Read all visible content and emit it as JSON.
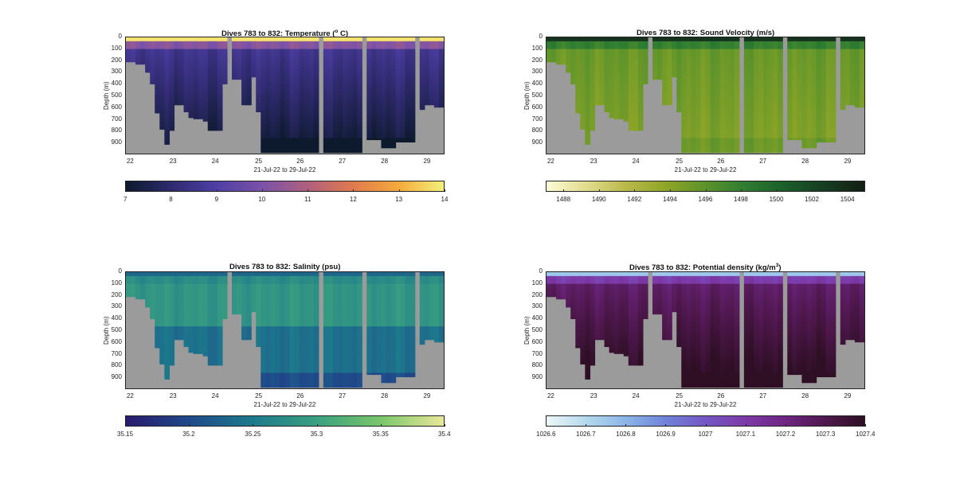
{
  "chart_data": [
    {
      "type": "heatmap",
      "title_main": "Dives 783 to 832: Temperature (",
      "title_sup": "o",
      "title_end": " C)",
      "xlabel": "21-Jul-22 to 29-Jul-22",
      "ylabel": "Depth (m)",
      "xticks": [
        "22",
        "23",
        "24",
        "25",
        "26",
        "27",
        "28",
        "29"
      ],
      "yticks": [
        "0",
        "100",
        "200",
        "300",
        "400",
        "500",
        "600",
        "700",
        "800",
        "900"
      ],
      "ylim": [
        0,
        1000
      ],
      "colorbar": {
        "ticks": [
          "7",
          "8",
          "9",
          "10",
          "11",
          "12",
          "13",
          "14"
        ],
        "range": [
          7,
          14
        ],
        "colors": [
          "#0d1a2e",
          "#2f2a6e",
          "#4f3fa6",
          "#7a52a8",
          "#b0607f",
          "#e07a4e",
          "#f5a93c",
          "#f3f07a"
        ]
      },
      "surface_value": 13.8,
      "deep_value": 8.6
    },
    {
      "type": "heatmap",
      "title_main": "Dives 783 to 832: Sound Velocity (m/s)",
      "title_sup": "",
      "title_end": "",
      "xlabel": "21-Jul-22 to 29-Jul-22",
      "ylabel": "Depth (m)",
      "xticks": [
        "22",
        "23",
        "24",
        "25",
        "26",
        "27",
        "28",
        "29"
      ],
      "yticks": [
        "0",
        "100",
        "200",
        "300",
        "400",
        "500",
        "600",
        "700",
        "800",
        "900"
      ],
      "ylim": [
        0,
        1000
      ],
      "colorbar": {
        "ticks": [
          "1488",
          "1490",
          "1492",
          "1494",
          "1496",
          "1498",
          "1500",
          "1502",
          "1504"
        ],
        "range": [
          1487,
          1505
        ],
        "colors": [
          "#fdfbd6",
          "#e1dc8e",
          "#b9b94a",
          "#8fa627",
          "#5c932b",
          "#2e7d32",
          "#1b5e2a",
          "#163d22",
          "#121f14"
        ]
      },
      "surface_value": 1503.5,
      "deep_value": 1495.5
    },
    {
      "type": "heatmap",
      "title_main": "Dives 783 to 832: Salinity (psu)",
      "title_sup": "",
      "title_end": "",
      "xlabel": "21-Jul-22 to 29-Jul-22",
      "ylabel": "Depth (m)",
      "xticks": [
        "22",
        "23",
        "24",
        "25",
        "26",
        "27",
        "28",
        "29"
      ],
      "yticks": [
        "0",
        "100",
        "200",
        "300",
        "400",
        "500",
        "600",
        "700",
        "800",
        "900"
      ],
      "ylim": [
        0,
        1000
      ],
      "colorbar": {
        "ticks": [
          "35.15",
          "35.2",
          "35.25",
          "35.3",
          "35.35",
          "35.4"
        ],
        "range": [
          35.15,
          35.4
        ],
        "colors": [
          "#2a1a6e",
          "#1f4a8a",
          "#1d7a8c",
          "#3aa080",
          "#79c66a",
          "#eae89a"
        ]
      },
      "surface_value": 35.23,
      "deep_value": 35.27
    },
    {
      "type": "heatmap",
      "title_main": "Dives 783 to 832: Potential density (kg/m",
      "title_sup": "3",
      "title_end": ")",
      "xlabel": "21-Jul-22 to 29-Jul-22",
      "ylabel": "Depth (m)",
      "xticks": [
        "22",
        "23",
        "24",
        "25",
        "26",
        "27",
        "28",
        "29"
      ],
      "yticks": [
        "0",
        "100",
        "200",
        "300",
        "400",
        "500",
        "600",
        "700",
        "800",
        "900"
      ],
      "ylim": [
        0,
        1000
      ],
      "colorbar": {
        "ticks": [
          "1026.6",
          "1026.7",
          "1026.8",
          "1026.9",
          "1027",
          "1027.1",
          "1027.2",
          "1027.3",
          "1027.4"
        ],
        "range": [
          1026.6,
          1027.4
        ],
        "colors": [
          "#eef7f7",
          "#b4d9ee",
          "#8bb5e8",
          "#7083d8",
          "#7556c6",
          "#7d3aa8",
          "#6f2684",
          "#50184f",
          "#2e0f24"
        ]
      },
      "surface_value": 1026.75,
      "deep_value": 1027.25
    }
  ]
}
